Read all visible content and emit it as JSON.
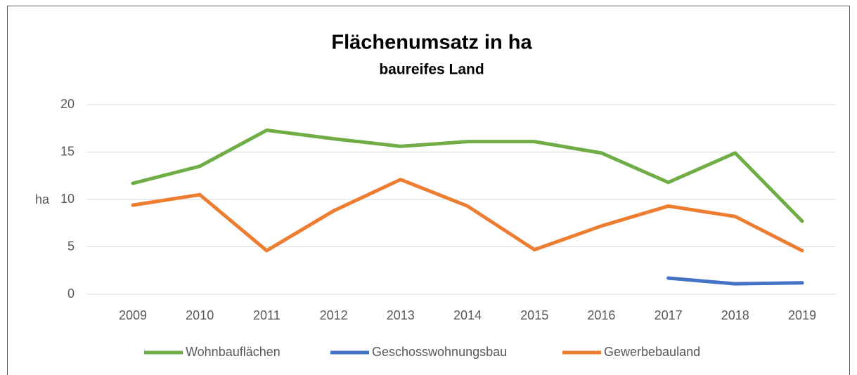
{
  "chart_data": {
    "type": "line",
    "title": "Flächenumsatz in ha",
    "subtitle": "baureifes Land",
    "ylabel": "ha",
    "categories": [
      "2009",
      "2010",
      "2011",
      "2012",
      "2013",
      "2014",
      "2015",
      "2016",
      "2017",
      "2018",
      "2019"
    ],
    "series": [
      {
        "name": "Wohnbauflächen",
        "color": "#70ad47",
        "values": [
          11.7,
          13.5,
          17.3,
          16.4,
          15.6,
          16.1,
          16.1,
          14.9,
          11.8,
          14.9,
          7.7
        ]
      },
      {
        "name": "Geschosswohnungsbau",
        "color": "#4472c4",
        "values": [
          null,
          null,
          null,
          null,
          null,
          null,
          null,
          null,
          1.7,
          1.1,
          1.2
        ]
      },
      {
        "name": "Gewerbebauland",
        "color": "#ed7d31",
        "values": [
          9.4,
          10.5,
          4.6,
          8.8,
          12.1,
          9.3,
          4.7,
          7.2,
          9.3,
          8.2,
          4.6
        ]
      }
    ],
    "ylim": [
      0,
      20
    ],
    "yticks": [
      0,
      5,
      10,
      15,
      20
    ],
    "grid": true,
    "legend": "bottom"
  }
}
